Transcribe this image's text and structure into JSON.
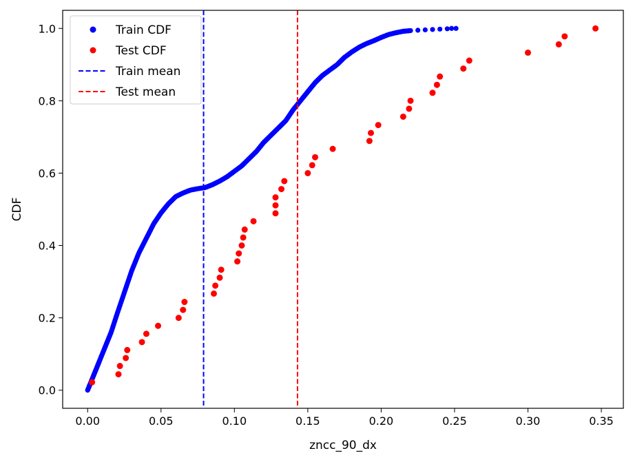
{
  "chart_data": {
    "type": "scatter",
    "title": "",
    "xlabel": "zncc_90_dx",
    "ylabel": "CDF",
    "xlim": [
      -0.017,
      0.365
    ],
    "ylim": [
      -0.05,
      1.05
    ],
    "xticks": [
      0.0,
      0.05,
      0.1,
      0.15,
      0.2,
      0.25,
      0.3,
      0.35
    ],
    "xtick_labels": [
      "0.00",
      "0.05",
      "0.10",
      "0.15",
      "0.20",
      "0.25",
      "0.30",
      "0.35"
    ],
    "yticks": [
      0.0,
      0.2,
      0.4,
      0.6,
      0.8,
      1.0
    ],
    "ytick_labels": [
      "0.0",
      "0.2",
      "0.4",
      "0.6",
      "0.8",
      "1.0"
    ],
    "grid": false,
    "legend_position": "upper-left",
    "series": [
      {
        "name": "Train CDF",
        "kind": "points",
        "color": "#0000ff",
        "curve_anchors": [
          [
            0.0,
            0.0
          ],
          [
            0.002,
            0.02
          ],
          [
            0.005,
            0.05
          ],
          [
            0.008,
            0.08
          ],
          [
            0.012,
            0.12
          ],
          [
            0.016,
            0.16
          ],
          [
            0.02,
            0.21
          ],
          [
            0.025,
            0.27
          ],
          [
            0.03,
            0.33
          ],
          [
            0.035,
            0.38
          ],
          [
            0.04,
            0.42
          ],
          [
            0.045,
            0.46
          ],
          [
            0.05,
            0.49
          ],
          [
            0.055,
            0.515
          ],
          [
            0.06,
            0.535
          ],
          [
            0.065,
            0.545
          ],
          [
            0.07,
            0.553
          ],
          [
            0.075,
            0.557
          ],
          [
            0.08,
            0.56
          ],
          [
            0.085,
            0.568
          ],
          [
            0.09,
            0.578
          ],
          [
            0.095,
            0.59
          ],
          [
            0.1,
            0.605
          ],
          [
            0.105,
            0.62
          ],
          [
            0.11,
            0.64
          ],
          [
            0.115,
            0.66
          ],
          [
            0.12,
            0.685
          ],
          [
            0.125,
            0.705
          ],
          [
            0.13,
            0.725
          ],
          [
            0.135,
            0.745
          ],
          [
            0.14,
            0.775
          ],
          [
            0.145,
            0.8
          ],
          [
            0.15,
            0.825
          ],
          [
            0.155,
            0.85
          ],
          [
            0.16,
            0.87
          ],
          [
            0.165,
            0.885
          ],
          [
            0.17,
            0.9
          ],
          [
            0.175,
            0.92
          ],
          [
            0.18,
            0.935
          ],
          [
            0.185,
            0.948
          ],
          [
            0.19,
            0.958
          ],
          [
            0.195,
            0.966
          ],
          [
            0.2,
            0.975
          ],
          [
            0.205,
            0.983
          ],
          [
            0.21,
            0.988
          ],
          [
            0.215,
            0.992
          ],
          [
            0.22,
            0.994
          ]
        ],
        "sparse_points": [
          [
            0.225,
            0.995
          ],
          [
            0.23,
            0.996
          ],
          [
            0.235,
            0.997
          ],
          [
            0.24,
            0.998
          ],
          [
            0.245,
            0.999
          ],
          [
            0.248,
            1.0
          ],
          [
            0.251,
            1.0
          ]
        ]
      },
      {
        "name": "Test CDF",
        "kind": "points",
        "color": "#ff0000",
        "points": [
          [
            0.003,
            0.022
          ],
          [
            0.021,
            0.044
          ],
          [
            0.022,
            0.067
          ],
          [
            0.026,
            0.089
          ],
          [
            0.027,
            0.111
          ],
          [
            0.037,
            0.133
          ],
          [
            0.04,
            0.156
          ],
          [
            0.048,
            0.178
          ],
          [
            0.062,
            0.2
          ],
          [
            0.065,
            0.222
          ],
          [
            0.066,
            0.244
          ],
          [
            0.086,
            0.267
          ],
          [
            0.087,
            0.289
          ],
          [
            0.09,
            0.311
          ],
          [
            0.091,
            0.333
          ],
          [
            0.102,
            0.356
          ],
          [
            0.103,
            0.378
          ],
          [
            0.105,
            0.4
          ],
          [
            0.106,
            0.422
          ],
          [
            0.107,
            0.444
          ],
          [
            0.113,
            0.467
          ],
          [
            0.128,
            0.489
          ],
          [
            0.128,
            0.511
          ],
          [
            0.128,
            0.533
          ],
          [
            0.132,
            0.556
          ],
          [
            0.134,
            0.578
          ],
          [
            0.15,
            0.6
          ],
          [
            0.153,
            0.622
          ],
          [
            0.155,
            0.644
          ],
          [
            0.167,
            0.667
          ],
          [
            0.192,
            0.689
          ],
          [
            0.193,
            0.711
          ],
          [
            0.198,
            0.733
          ],
          [
            0.215,
            0.756
          ],
          [
            0.219,
            0.778
          ],
          [
            0.22,
            0.8
          ],
          [
            0.235,
            0.822
          ],
          [
            0.238,
            0.844
          ],
          [
            0.24,
            0.867
          ],
          [
            0.256,
            0.889
          ],
          [
            0.26,
            0.911
          ],
          [
            0.3,
            0.933
          ],
          [
            0.321,
            0.956
          ],
          [
            0.325,
            0.978
          ],
          [
            0.346,
            1.0
          ]
        ]
      },
      {
        "name": "Train mean",
        "kind": "vline",
        "color": "#0000ff",
        "x": 0.079
      },
      {
        "name": "Test mean",
        "kind": "vline",
        "color": "#ff0000",
        "x": 0.143
      }
    ]
  }
}
